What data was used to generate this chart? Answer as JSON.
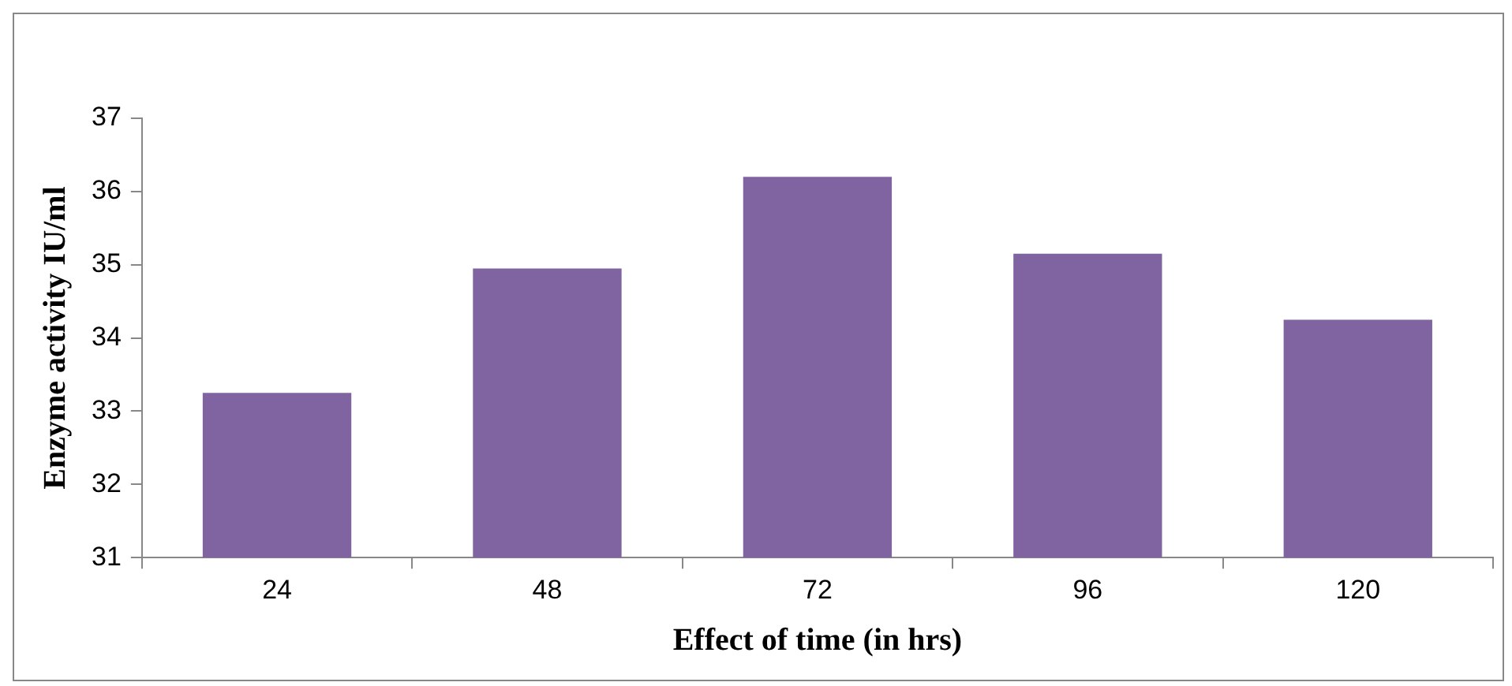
{
  "chart_data": {
    "type": "bar",
    "xlabel": "Effect of time (in hrs)",
    "ylabel": "Enzyme activity IU/ml",
    "categories": [
      "24",
      "48",
      "72",
      "96",
      "120"
    ],
    "values": [
      33.25,
      34.95,
      36.2,
      35.15,
      34.25
    ],
    "color": "#8064a2",
    "ylim": [
      31,
      37
    ],
    "yticks": [
      31,
      32,
      33,
      34,
      35,
      36,
      37
    ],
    "grid": false,
    "legend": false
  }
}
